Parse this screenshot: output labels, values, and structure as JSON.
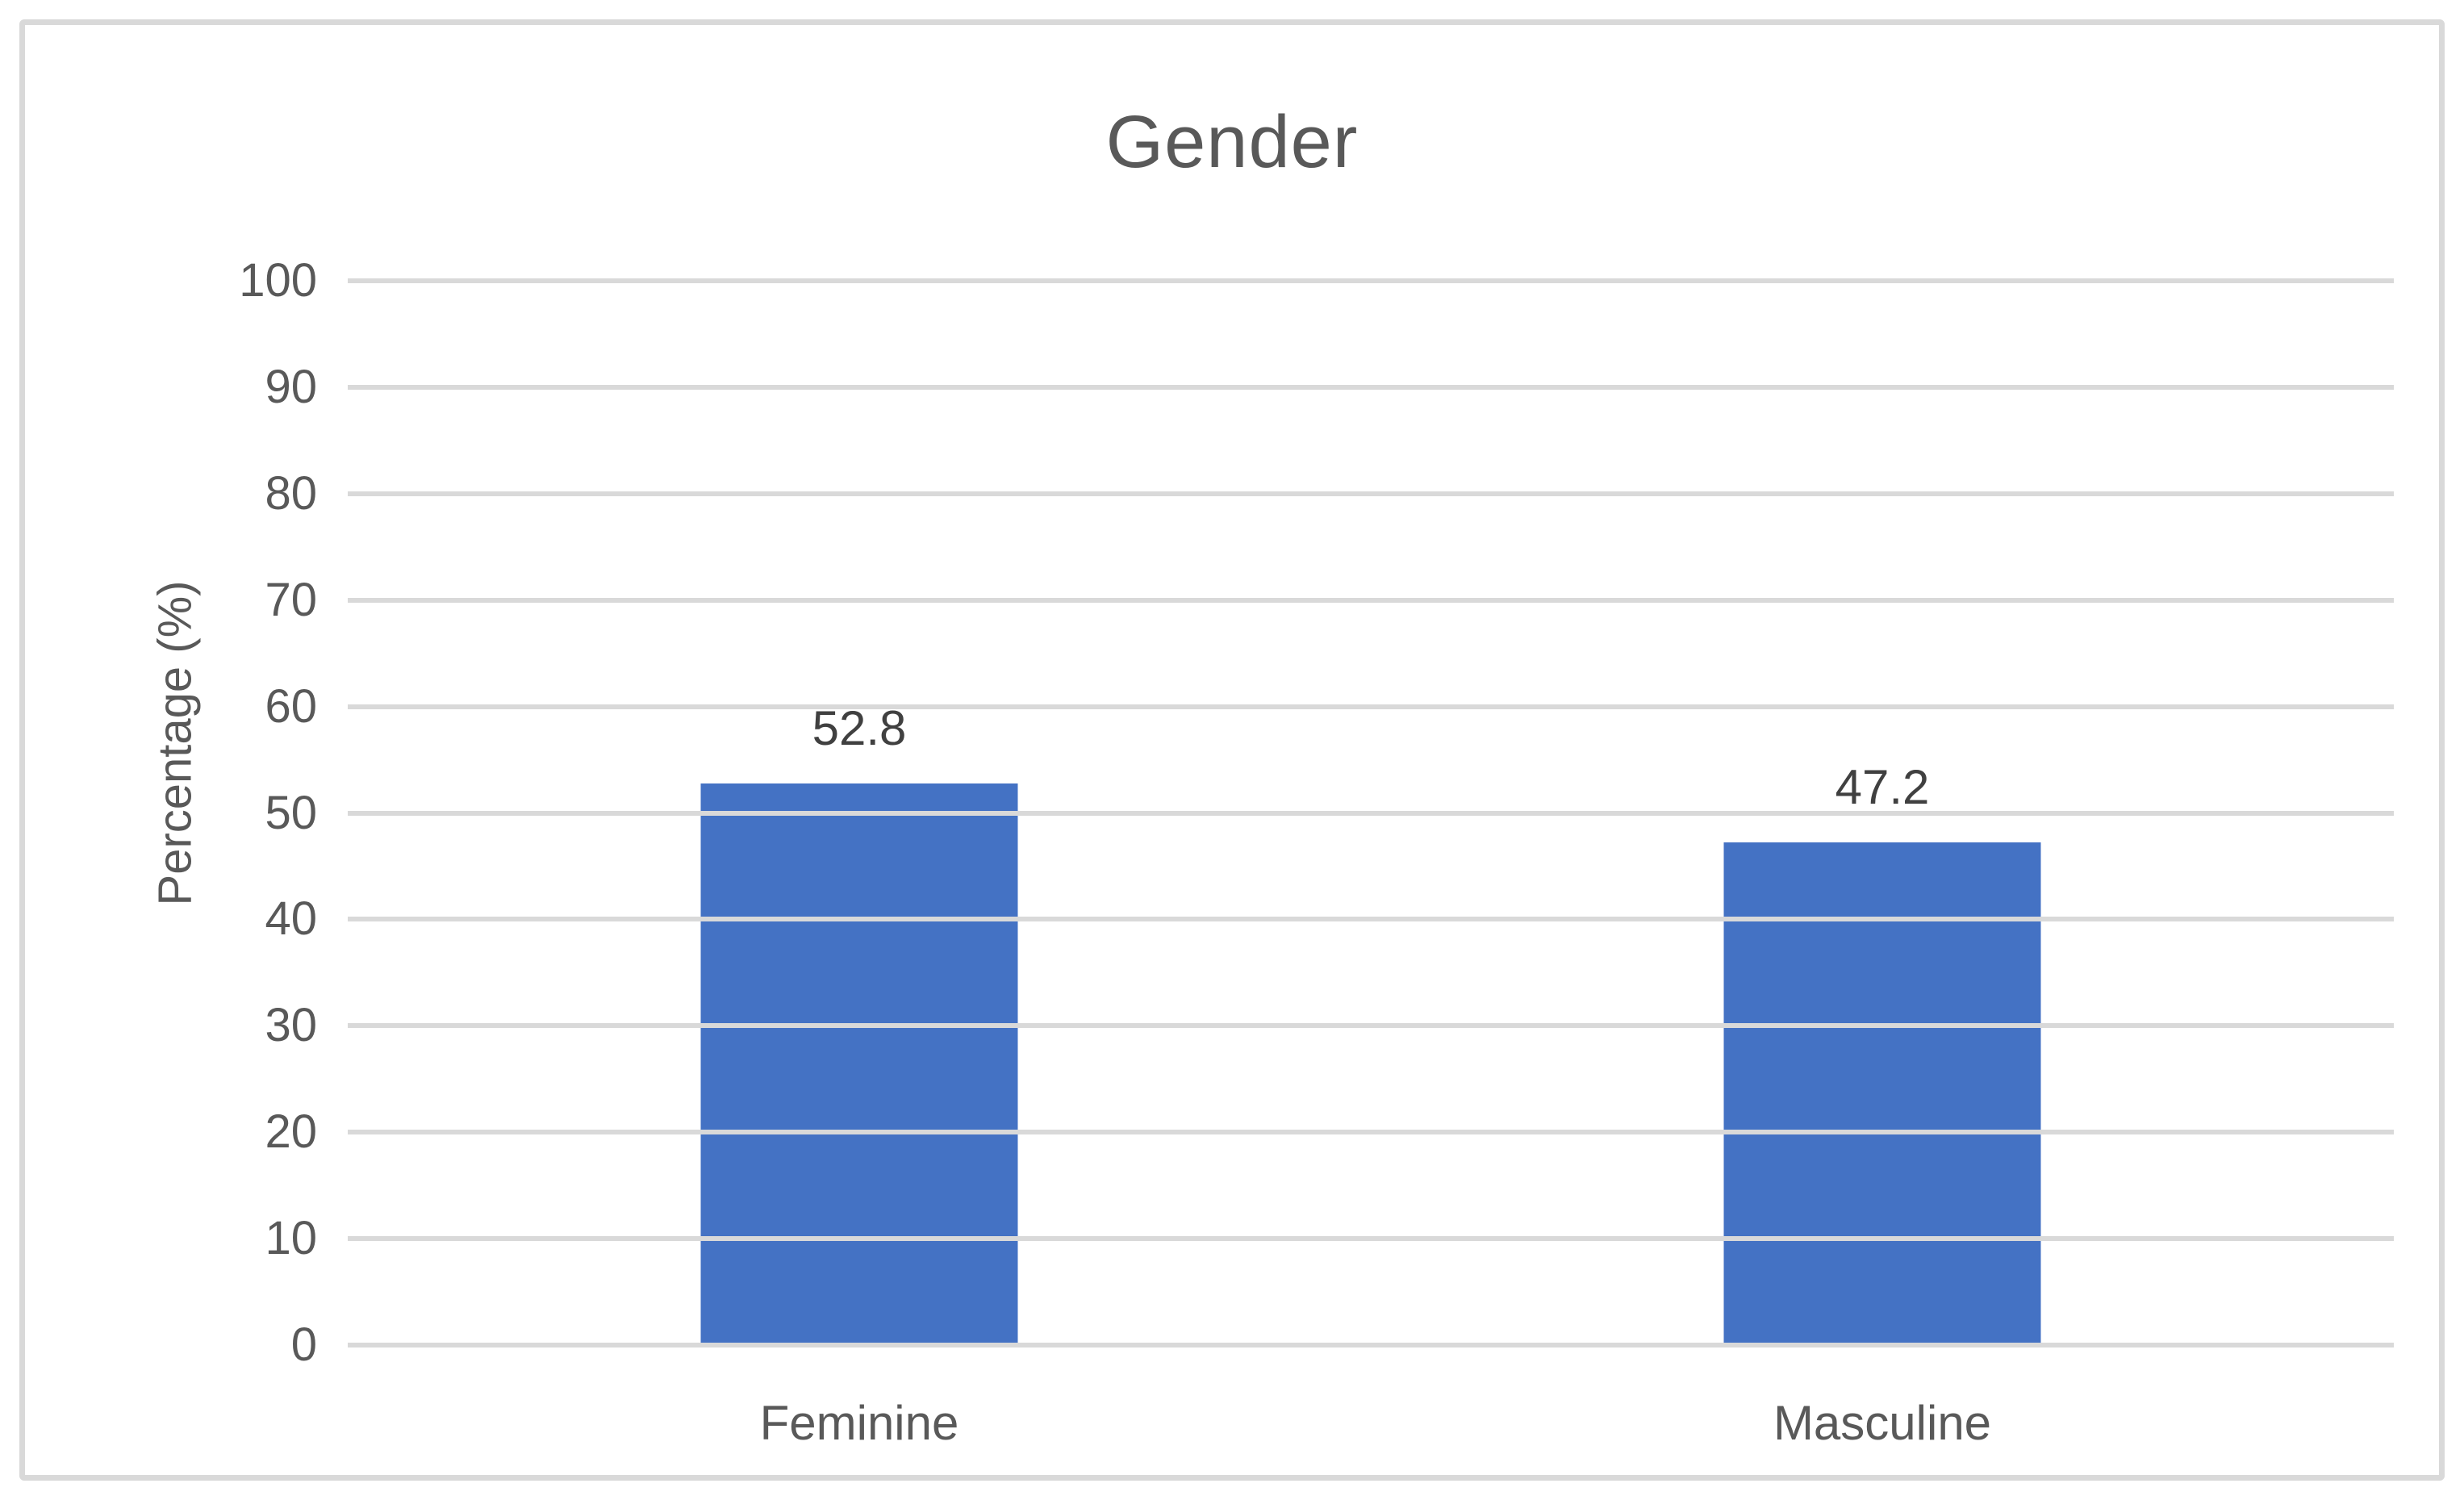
{
  "chart_data": {
    "type": "bar",
    "title": "Gender",
    "ylabel": "Percentage (%)",
    "xlabel": "",
    "categories": [
      "Feminine",
      "Masculine"
    ],
    "values": [
      52.8,
      47.2
    ],
    "value_labels": [
      "52.8",
      "47.2"
    ],
    "ylim": [
      0,
      100
    ],
    "yticks": [
      0,
      10,
      20,
      30,
      40,
      50,
      60,
      70,
      80,
      90,
      100
    ],
    "grid": true,
    "legend": "none",
    "bar_count": 2,
    "colors": {
      "bar": "#4472C4",
      "gridline": "#D9D9D9",
      "frame_border": "#D9D9D9",
      "axis_text": "#595959",
      "title_text": "#595959",
      "data_label_text": "#404040",
      "background": "#FFFFFF"
    }
  }
}
